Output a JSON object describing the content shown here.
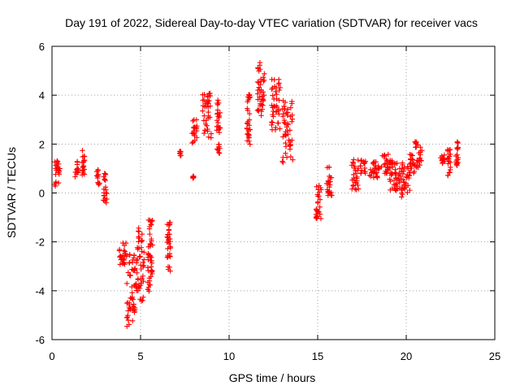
{
  "chart_data": {
    "type": "scatter",
    "title": "Day 191 of 2022, Sidereal Day-to-day VTEC variation (SDTVAR) for receiver vacs",
    "xlabel": "GPS time / hours",
    "ylabel": "SDTVAR / TECUs",
    "xlim": [
      0,
      25
    ],
    "ylim": [
      -6,
      6
    ],
    "xticks": [
      0,
      5,
      10,
      15,
      20,
      25
    ],
    "yticks": [
      -6,
      -4,
      -2,
      0,
      2,
      4,
      6
    ],
    "grid": true,
    "marker": "plus",
    "color": "#ff0000",
    "segments": [
      {
        "x0": 0.15,
        "x1": 0.45,
        "ymin": 0.2,
        "ymax": 1.4
      },
      {
        "x0": 1.3,
        "x1": 1.5,
        "ymin": 0.6,
        "ymax": 1.3
      },
      {
        "x0": 1.7,
        "x1": 1.85,
        "ymin": 0.7,
        "ymax": 1.8
      },
      {
        "x0": 2.5,
        "x1": 2.7,
        "ymin": 0.3,
        "ymax": 1.0
      },
      {
        "x0": 2.9,
        "x1": 3.1,
        "ymin": -0.5,
        "ymax": 0.8
      },
      {
        "x0": 3.8,
        "x1": 4.2,
        "ymin": -3.0,
        "ymax": -2.0
      },
      {
        "x0": 4.2,
        "x1": 4.7,
        "ymin": -5.6,
        "ymax": -2.5
      },
      {
        "x0": 4.7,
        "x1": 5.2,
        "ymin": -4.5,
        "ymax": -1.4
      },
      {
        "x0": 5.4,
        "x1": 5.7,
        "ymin": -4.1,
        "ymax": -1.0
      },
      {
        "x0": 6.5,
        "x1": 6.7,
        "ymin": -3.4,
        "ymax": -1.1
      },
      {
        "x0": 7.2,
        "x1": 7.3,
        "ymin": 1.5,
        "ymax": 1.7
      },
      {
        "x0": 7.9,
        "x1": 8.2,
        "ymin": 2.0,
        "ymax": 3.0
      },
      {
        "x0": 7.95,
        "x1": 8.0,
        "ymin": 0.6,
        "ymax": 0.7
      },
      {
        "x0": 8.5,
        "x1": 9.0,
        "ymin": 2.2,
        "ymax": 4.1
      },
      {
        "x0": 9.3,
        "x1": 9.5,
        "ymin": 1.6,
        "ymax": 3.8
      },
      {
        "x0": 11.0,
        "x1": 11.2,
        "ymin": 1.9,
        "ymax": 4.1
      },
      {
        "x0": 11.6,
        "x1": 12.0,
        "ymin": 3.1,
        "ymax": 5.4
      },
      {
        "x0": 12.4,
        "x1": 12.9,
        "ymin": 2.5,
        "ymax": 4.7
      },
      {
        "x0": 13.0,
        "x1": 13.6,
        "ymin": 1.2,
        "ymax": 3.8
      },
      {
        "x0": 14.9,
        "x1": 15.2,
        "ymin": -1.1,
        "ymax": 0.4
      },
      {
        "x0": 15.5,
        "x1": 15.8,
        "ymin": -0.2,
        "ymax": 1.1
      },
      {
        "x0": 16.9,
        "x1": 17.3,
        "ymin": 0.1,
        "ymax": 1.4
      },
      {
        "x0": 17.4,
        "x1": 17.7,
        "ymin": 0.8,
        "ymax": 1.4
      },
      {
        "x0": 17.9,
        "x1": 18.5,
        "ymin": 0.6,
        "ymax": 1.3
      },
      {
        "x0": 18.6,
        "x1": 19.0,
        "ymin": 0.8,
        "ymax": 1.6
      },
      {
        "x0": 19.0,
        "x1": 19.4,
        "ymin": 0.1,
        "ymax": 1.4
      },
      {
        "x0": 19.4,
        "x1": 19.8,
        "ymin": -0.2,
        "ymax": 1.3
      },
      {
        "x0": 19.8,
        "x1": 20.2,
        "ymin": 0.0,
        "ymax": 1.1
      },
      {
        "x0": 20.2,
        "x1": 20.5,
        "ymin": 0.8,
        "ymax": 1.6
      },
      {
        "x0": 20.5,
        "x1": 20.9,
        "ymin": 1.0,
        "ymax": 2.1
      },
      {
        "x0": 21.9,
        "x1": 22.2,
        "ymin": 1.2,
        "ymax": 1.6
      },
      {
        "x0": 22.3,
        "x1": 22.5,
        "ymin": 0.7,
        "ymax": 1.9
      },
      {
        "x0": 22.8,
        "x1": 22.95,
        "ymin": 1.0,
        "ymax": 2.1
      }
    ]
  }
}
